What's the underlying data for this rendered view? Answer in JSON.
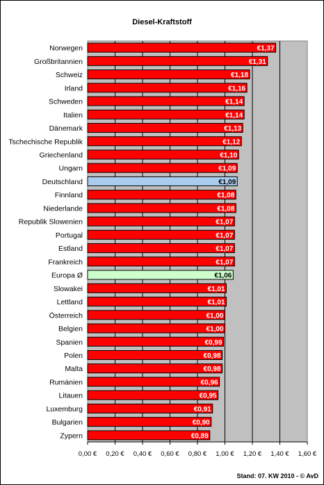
{
  "chart_data": {
    "type": "bar",
    "orientation": "horizontal",
    "title": "Diesel-Kraftstoff",
    "footer": "Stand: 07. KW 2010 - © AvD",
    "categories": [
      "Norwegen",
      "Großbritannien",
      "Schweiz",
      "Irland",
      "Schweden",
      "Italien",
      "Dänemark",
      "Tschechische Republik",
      "Griechenland",
      "Ungarn",
      "Deutschland",
      "Finnland",
      "Niederlande",
      "Republik Slowenien",
      "Portugal",
      "Estland",
      "Frankreich",
      "Europa Ø",
      "Slowakei",
      "Lettland",
      "Österreich",
      "Belgien",
      "Spanien",
      "Polen",
      "Malta",
      "Rumänien",
      "Litauen",
      "Luxemburg",
      "Bulgarien",
      "Zypern"
    ],
    "values": [
      1.37,
      1.31,
      1.18,
      1.16,
      1.14,
      1.14,
      1.13,
      1.12,
      1.1,
      1.09,
      1.09,
      1.08,
      1.08,
      1.07,
      1.07,
      1.07,
      1.07,
      1.06,
      1.01,
      1.01,
      1.0,
      1.0,
      0.99,
      0.98,
      0.98,
      0.96,
      0.95,
      0.91,
      0.9,
      0.89
    ],
    "value_labels": [
      "€1,37",
      "€1,31",
      "€1,18",
      "€1,16",
      "€1,14",
      "€1,14",
      "€1,13",
      "€1,12",
      "€1,10",
      "€1,09",
      "€1,09",
      "€1,08",
      "€1,08",
      "€1,07",
      "€1,07",
      "€1,07",
      "€1,07",
      "€1,06",
      "€1,01",
      "€1,01",
      "€1,00",
      "€1,00",
      "€0,99",
      "€0,98",
      "€0,98",
      "€0,96",
      "€0,95",
      "€0,91",
      "€0,90",
      "€0,89"
    ],
    "xlim": [
      0,
      1.6
    ],
    "x_ticks": [
      "0,00 €",
      "0,20 €",
      "0,40 €",
      "0,60 €",
      "0,80 €",
      "1,00 €",
      "1,20 €",
      "1,40 €",
      "1,60 €"
    ],
    "grid": "vertical",
    "colors": {
      "default_bar": "#ff0000",
      "highlight_bar": "#aaccee",
      "average_bar": "#ccffcc",
      "plot_background": "#c0c0c0",
      "value_label_text": "#ffffff",
      "highlight_label_text": "#000000"
    },
    "highlight": "Deutschland",
    "average": "Europa Ø"
  }
}
